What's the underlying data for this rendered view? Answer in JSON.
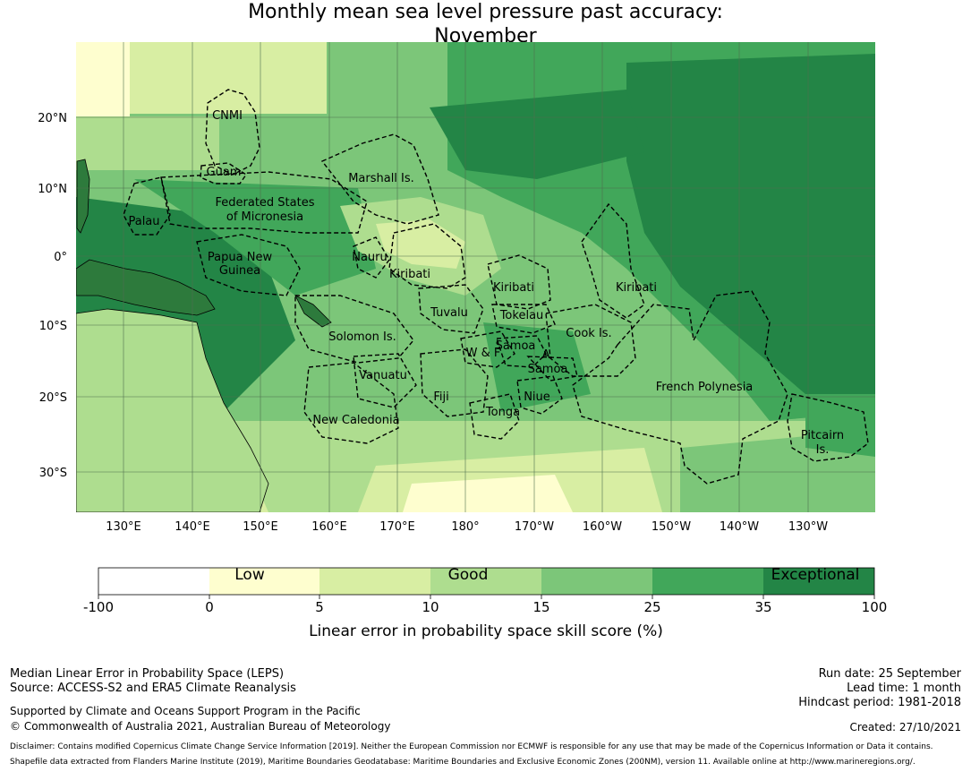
{
  "title": {
    "line1": "Monthly mean sea level pressure past accuracy:",
    "line2": "November"
  },
  "map": {
    "lat_labels": [
      "20°N",
      "10°N",
      "0°",
      "10°S",
      "20°S",
      "30°S"
    ],
    "lon_labels": [
      "130°E",
      "140°E",
      "150°E",
      "160°E",
      "170°E",
      "180°",
      "170°W",
      "160°W",
      "150°W",
      "140°W",
      "130°W"
    ],
    "region_labels": [
      "CNMI",
      "Guam",
      "Marshall Is.",
      "Federated States",
      "of Micronesia",
      "Palau",
      "Papua New",
      "Guinea",
      "Nauru",
      "Kiribati",
      "Kiribati",
      "Kiribati",
      "Tuvalu",
      "Tokelau",
      "Solomon Is.",
      "Cook Is.",
      "W & F",
      "Samoa",
      "A.",
      "Samoa",
      "Vanuatu",
      "Fiji",
      "Niue",
      "French Polynesia",
      "Tonga",
      "New Caledonia",
      "Pitcairn",
      "Is."
    ],
    "colors": {
      "ocean_low": "#fefecf",
      "land_bg": "#3a8f4a",
      "coast": "#000000",
      "grid": "#5a7a5a",
      "eez_border": "#000000"
    }
  },
  "legend": {
    "category_labels": [
      "Low",
      "Good",
      "Exceptional"
    ],
    "tick_labels": [
      "-100",
      "0",
      "5",
      "10",
      "15",
      "25",
      "35",
      "100"
    ],
    "colors": [
      "#ffffff",
      "#fefecf",
      "#d8eea3",
      "#aedd8f",
      "#7cc679",
      "#41a75a",
      "#238546"
    ],
    "axis_title": "Linear error in probability space skill score (%)"
  },
  "footer": {
    "left_line1": "Median Linear Error in Probability Space (LEPS)",
    "left_line2": "Source: ACCESS-S2 and ERA5 Climate Reanalysis",
    "support_line1": "Supported by Climate and Oceans Support Program in the Pacific",
    "support_line2": "© Commonwealth of Australia 2021, Australian Bureau of Meteorology",
    "run_date": "Run date: 25 September",
    "lead_time": "Lead time: 1 month",
    "hindcast": "Hindcast period: 1981-2018",
    "created": "Created: 27/10/2021",
    "disclaimer1": "Disclaimer: Contains modified Copernicus Climate Change Service Information [2019]. Neither the European Commission nor ECMWF is responsible for any use that may be made of the Copernicus Information or Data it contains.",
    "disclaimer2": "Shapefile data extracted from Flanders Marine Institute (2019), Maritime Boundaries Geodatabase: Maritime Boundaries and Exclusive Economic Zones (200NM), version 11. Available online at http://www.marineregions.org/."
  }
}
